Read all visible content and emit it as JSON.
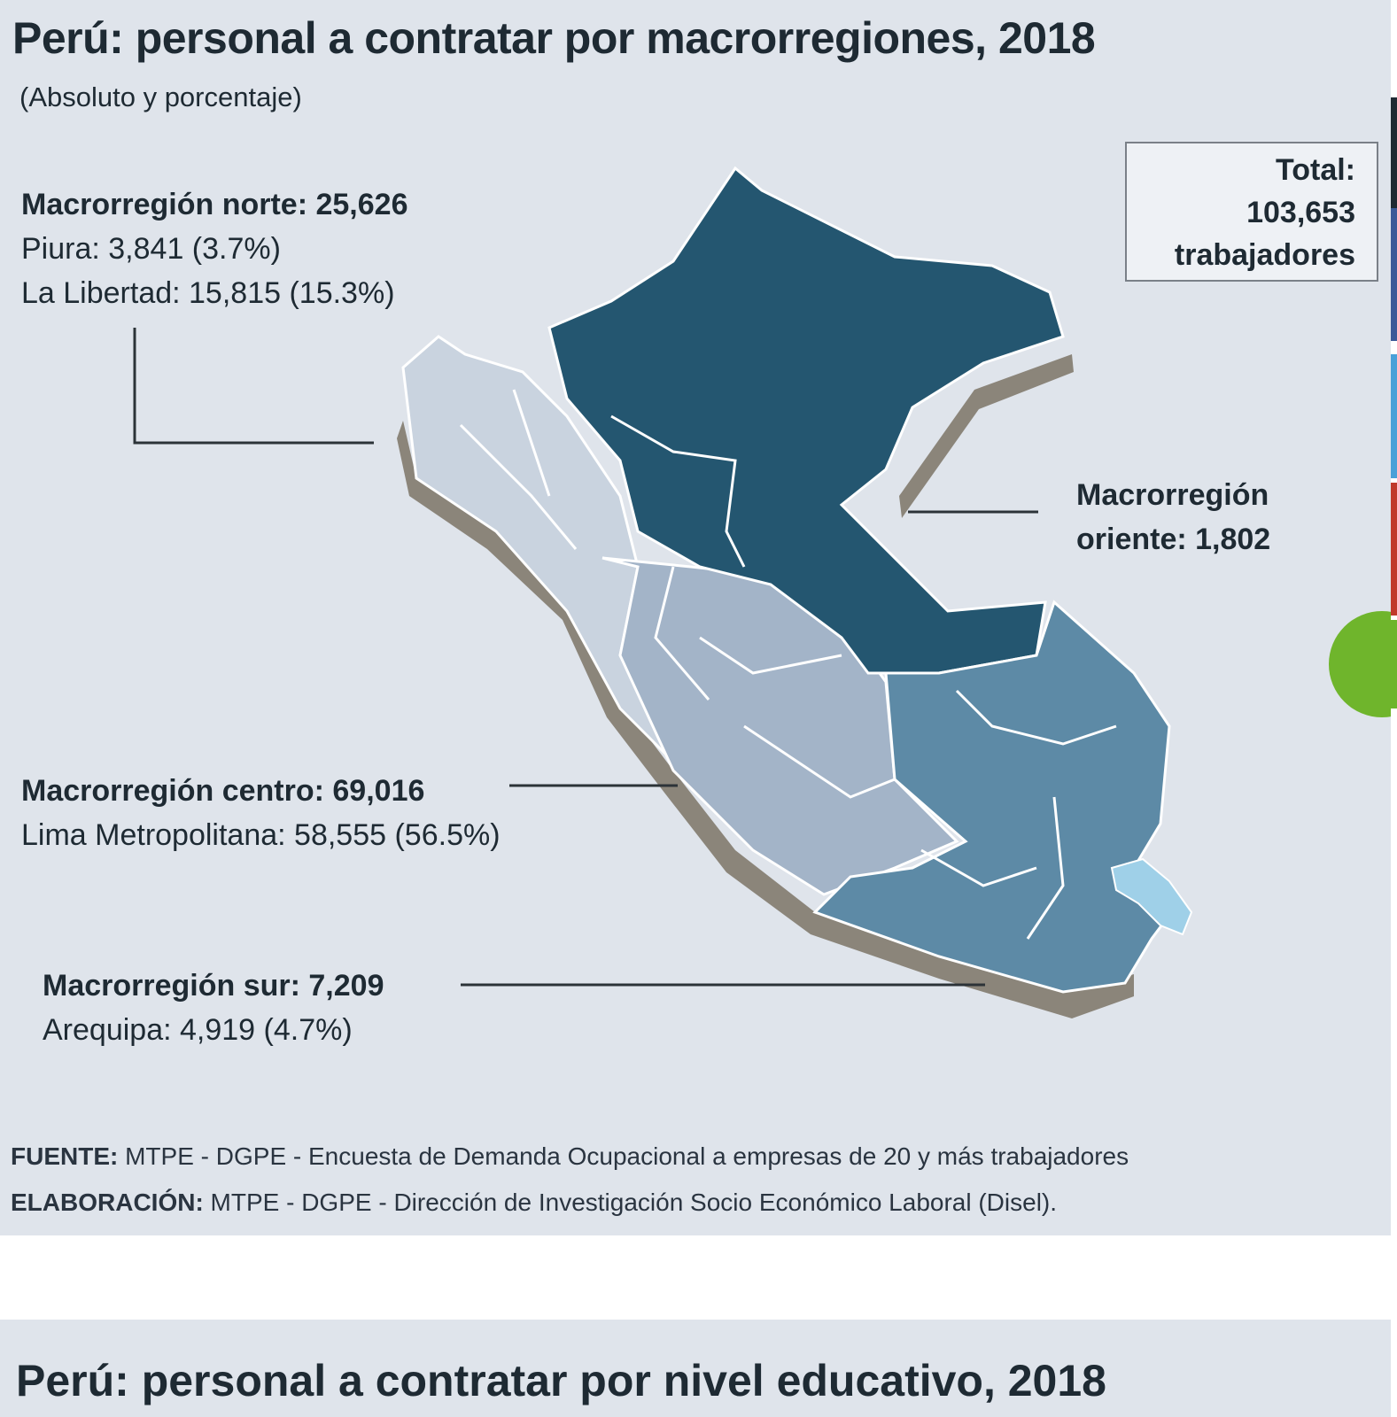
{
  "title": "Perú: personal a contratar por macrorregiones, 2018",
  "subtitle": "(Absoluto y porcentaje)",
  "total": {
    "line1": "Total:",
    "line2": "103,653",
    "line3": "trabajadores"
  },
  "regions": {
    "norte": {
      "head": "Macrorregión norte: 25,626",
      "lines": [
        "Piura: 3,841 (3.7%)",
        "La Libertad: 15,815 (15.3%)"
      ]
    },
    "oriente": {
      "head1": "Macrorregión",
      "head2": "oriente: 1,802"
    },
    "centro": {
      "head": "Macrorregión centro: 69,016",
      "lines": [
        "Lima Metropolitana: 58,555 (56.5%)"
      ]
    },
    "sur": {
      "head": "Macrorregión sur: 7,209",
      "lines": [
        "Arequipa: 4,919 (4.7%)"
      ]
    }
  },
  "colors": {
    "oriente": "#245670",
    "centro": "#a3b4c8",
    "sur": "#5d8aa6",
    "norte": "#c9d3df",
    "lake": "#9fd0e8",
    "wall": "#8b857a"
  },
  "footer": {
    "fuente_label": "FUENTE:",
    "fuente_text": " MTPE - DGPE - Encuesta de Demanda Ocupacional a empresas de 20 y más trabajadores",
    "elaboracion_label": "ELABORACIÓN:",
    "elaboracion_text": " MTPE - DGPE - Dirección de Investigación Socio Económico Laboral (Disel)."
  },
  "title2": "Perú: personal a contratar por nivel educativo, 2018"
}
